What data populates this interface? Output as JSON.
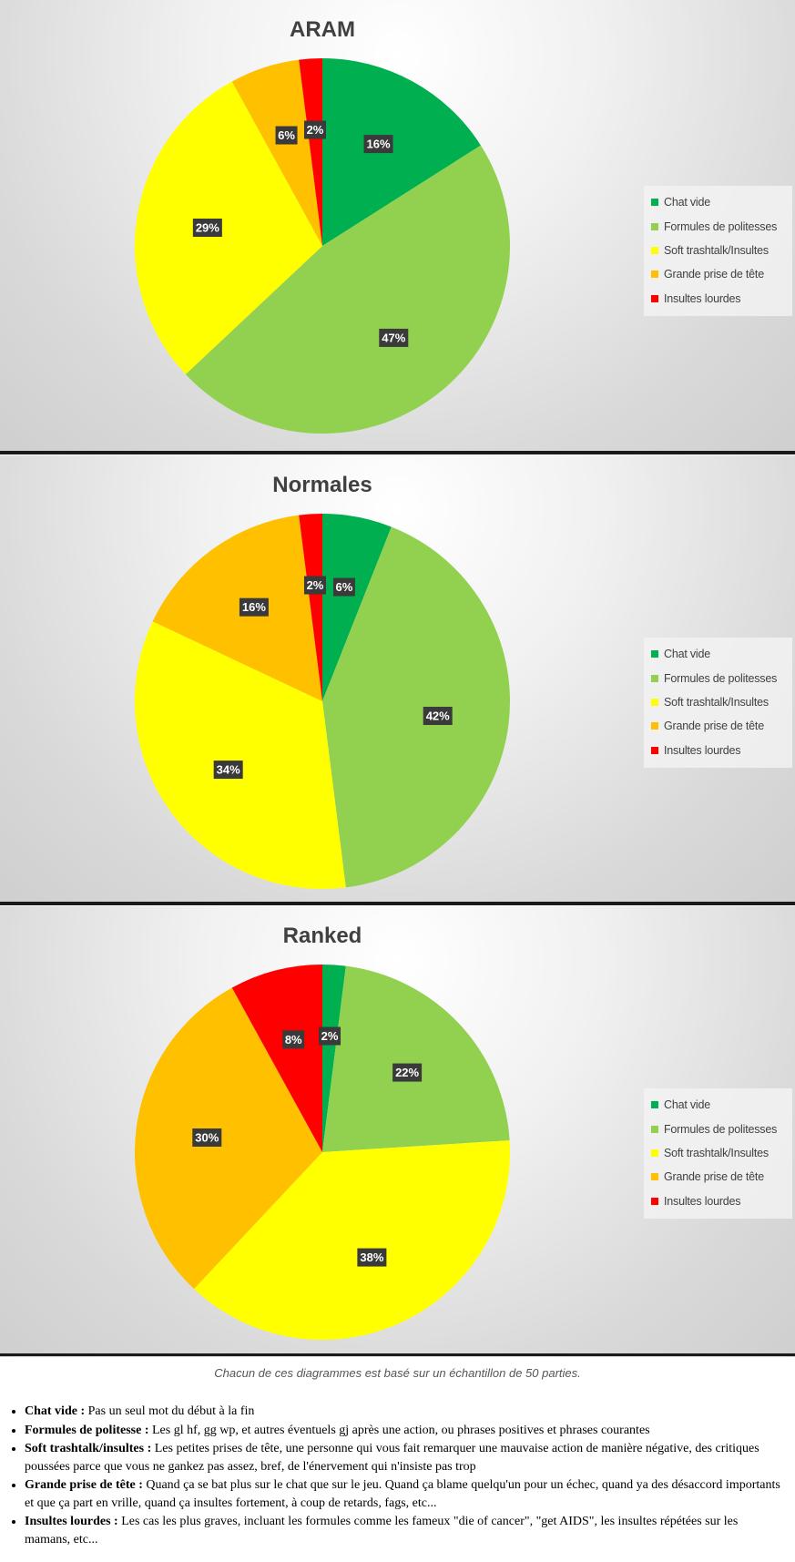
{
  "chart_data": [
    {
      "type": "pie",
      "title": "ARAM",
      "categories": [
        "Chat vide",
        "Formules de politesses",
        "Soft trashtalk/Insultes",
        "Grande prise de tête",
        "Insultes lourdes"
      ],
      "values": [
        16,
        47,
        29,
        6,
        2
      ],
      "labels": [
        "16%",
        "47%",
        "29%",
        "6%",
        "2%"
      ],
      "colors": [
        "#00B050",
        "#92D050",
        "#FFFF00",
        "#FFC000",
        "#FF0000"
      ],
      "legend": "right"
    },
    {
      "type": "pie",
      "title": "Normales",
      "categories": [
        "Chat vide",
        "Formules de politesses",
        "Soft trashtalk/Insultes",
        "Grande prise de tête",
        "Insultes lourdes"
      ],
      "values": [
        6,
        42,
        34,
        16,
        2
      ],
      "labels": [
        "6%",
        "42%",
        "34%",
        "16%",
        "2%"
      ],
      "colors": [
        "#00B050",
        "#92D050",
        "#FFFF00",
        "#FFC000",
        "#FF0000"
      ],
      "legend": "right"
    },
    {
      "type": "pie",
      "title": "Ranked",
      "categories": [
        "Chat vide",
        "Formules de politesses",
        "Soft trashtalk/Insultes",
        "Grande prise de tête",
        "Insultes lourdes"
      ],
      "values": [
        2,
        22,
        38,
        30,
        8
      ],
      "labels": [
        "2%",
        "22%",
        "38%",
        "30%",
        "8%"
      ],
      "colors": [
        "#00B050",
        "#92D050",
        "#FFFF00",
        "#FFC000",
        "#FF0000"
      ],
      "legend": "right"
    }
  ],
  "note": "Chacun de ces diagrammes est basé sur un échantillon de 50 parties.",
  "definitions": [
    {
      "term": "Chat vide :",
      "text": " Pas un seul mot du début à la fin"
    },
    {
      "term": "Formules de politesse :",
      "text": " Les gl hf, gg wp, et autres éventuels gj après une action, ou phrases positives et phrases courantes"
    },
    {
      "term": "Soft trashtalk/insultes :",
      "text": " Les petites prises de tête, une personne qui vous fait remarquer une mauvaise action de manière négative, des critiques poussées parce que vous ne gankez pas assez, bref, de l'énervement qui n'insiste pas trop"
    },
    {
      "term": "Grande prise de tête :",
      "text": " Quand ça se bat plus sur le chat que sur le jeu. Quand ça blame quelqu'un pour un échec, quand ya des désaccord importants et que ça part en vrille, quand ça insultes fortement, à coup de retards, fags, etc..."
    },
    {
      "term": "Insultes lourdes :",
      "text": " Les cas les plus graves, incluant les formules comme les fameux \"die of cancer\", \"get AIDS\", les insultes répétées sur les mamans, etc..."
    }
  ]
}
